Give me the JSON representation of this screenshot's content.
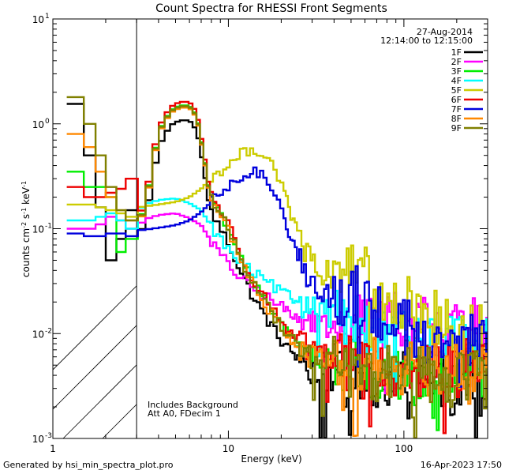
{
  "chart_data": {
    "type": "line",
    "title": "Count Spectra for RHESSI Front Segments",
    "xlabel": "Energy (keV)",
    "ylabel_parts": [
      "counts cm",
      "-2",
      " s",
      "-1",
      " keV",
      "-1"
    ],
    "xscale": "log",
    "yscale": "log",
    "xlim": [
      1,
      300
    ],
    "ylim": [
      0.001,
      10
    ],
    "x_ticks": [
      {
        "value": 1,
        "label": "1"
      },
      {
        "value": 10,
        "label": "10"
      },
      {
        "value": 100,
        "label": "100"
      }
    ],
    "y_ticks": [
      {
        "value": 0.001,
        "base": "10",
        "exp": "-3"
      },
      {
        "value": 0.01,
        "base": "10",
        "exp": "-2"
      },
      {
        "value": 0.1,
        "base": "10",
        "exp": "-1"
      },
      {
        "value": 1,
        "base": "10",
        "exp": "0"
      },
      {
        "value": 10,
        "base": "10",
        "exp": "1"
      }
    ],
    "shaded_region": {
      "from": 1,
      "to": 3,
      "style": "hatched"
    },
    "info": {
      "date": "27-Aug-2014",
      "time_range": "12:14:00 to 12:15:00"
    },
    "notes": [
      "Includes Background",
      "Att A0, FDecim 1"
    ],
    "series": [
      {
        "name": "1F",
        "color": "#000000",
        "shape": "A",
        "scale": 0.72,
        "low": [
          3.0,
          1.55,
          0.5,
          0.16,
          0.05,
          0.08,
          0.15
        ],
        "tail": 0.0032
      },
      {
        "name": "2F",
        "color": "#ff00ff",
        "shape": "S",
        "scale": 0.18,
        "low": [
          3.0,
          0.1,
          0.1,
          0.11,
          0.13,
          0.12,
          0.1
        ],
        "tail": 0.012
      },
      {
        "name": "3F",
        "color": "#00ee00",
        "shape": "A",
        "scale": 1.0,
        "low": [
          3.0,
          0.35,
          0.25,
          0.25,
          0.2,
          0.06,
          0.08
        ],
        "tail": 0.0042
      },
      {
        "name": "4F",
        "color": "#00ffff",
        "shape": "S",
        "scale": 0.25,
        "low": [
          3.0,
          0.12,
          0.12,
          0.13,
          0.14,
          0.12,
          0.1
        ],
        "tail": 0.009
      },
      {
        "name": "5F",
        "color": "#cccc00",
        "shape": "M",
        "scale": 1.0,
        "low": [
          3.0,
          0.17,
          0.17,
          0.16,
          0.15,
          0.14,
          0.13
        ],
        "tail": 0.011
      },
      {
        "name": "6F",
        "color": "#ee0000",
        "shape": "A",
        "scale": 1.08,
        "low": [
          3.0,
          0.25,
          0.2,
          0.2,
          0.22,
          0.24,
          0.3
        ],
        "tail": 0.0046
      },
      {
        "name": "7F",
        "color": "#0000dd",
        "shape": "M",
        "scale": 0.6,
        "low": [
          3.0,
          0.09,
          0.085,
          0.085,
          0.09,
          0.09,
          0.085
        ],
        "tail": 0.008
      },
      {
        "name": "8F",
        "color": "#ff8800",
        "shape": "A",
        "scale": 0.95,
        "low": [
          3.0,
          0.8,
          0.6,
          0.35,
          0.2,
          0.15,
          0.12
        ],
        "tail": 0.0045
      },
      {
        "name": "9F",
        "color": "#808000",
        "shape": "A",
        "scale": 0.98,
        "low": [
          3.0,
          1.8,
          1.0,
          0.5,
          0.25,
          0.15,
          0.12
        ],
        "tail": 0.0035
      }
    ],
    "shapes": {
      "A": [
        [
          3.05,
          0.11
        ],
        [
          3.4,
          0.18
        ],
        [
          3.8,
          0.55
        ],
        [
          4.2,
          1.0
        ],
        [
          4.7,
          1.35
        ],
        [
          5.3,
          1.5
        ],
        [
          6.0,
          1.5
        ],
        [
          6.6,
          1.2
        ],
        [
          7.2,
          0.55
        ],
        [
          7.8,
          0.22
        ],
        [
          8.6,
          0.16
        ],
        [
          9.5,
          0.12
        ],
        [
          10.5,
          0.085
        ],
        [
          12,
          0.05
        ],
        [
          14,
          0.03
        ],
        [
          17,
          0.018
        ],
        [
          20,
          0.012
        ],
        [
          25,
          0.008
        ],
        [
          30,
          0.006
        ],
        [
          40,
          0.005
        ],
        [
          60,
          0.0045
        ],
        [
          100,
          0.004
        ],
        [
          200,
          0.0038
        ],
        [
          300,
          0.0035
        ]
      ],
      "S": [
        [
          3.05,
          0.6
        ],
        [
          3.5,
          0.7
        ],
        [
          4,
          0.75
        ],
        [
          5,
          0.78
        ],
        [
          6,
          0.7
        ],
        [
          7,
          0.6
        ],
        [
          8,
          0.42
        ],
        [
          9,
          0.32
        ],
        [
          10,
          0.25
        ],
        [
          12,
          0.18
        ],
        [
          14,
          0.15
        ],
        [
          17,
          0.12
        ],
        [
          20,
          0.1
        ],
        [
          25,
          0.08
        ],
        [
          30,
          0.07
        ],
        [
          40,
          0.06
        ],
        [
          50,
          0.05
        ],
        [
          60,
          0.045
        ],
        [
          80,
          0.035
        ],
        [
          100,
          0.03
        ],
        [
          150,
          0.024
        ],
        [
          200,
          0.02
        ],
        [
          300,
          0.016
        ]
      ],
      "M": [
        [
          3.05,
          0.16
        ],
        [
          4,
          0.17
        ],
        [
          5,
          0.18
        ],
        [
          6,
          0.2
        ],
        [
          7,
          0.24
        ],
        [
          8,
          0.3
        ],
        [
          9,
          0.36
        ],
        [
          10,
          0.4
        ],
        [
          11,
          0.46
        ],
        [
          12,
          0.52
        ],
        [
          13,
          0.56
        ],
        [
          14,
          0.57
        ],
        [
          15,
          0.55
        ],
        [
          16,
          0.52
        ],
        [
          17,
          0.47
        ],
        [
          18,
          0.4
        ],
        [
          20,
          0.28
        ],
        [
          22,
          0.16
        ],
        [
          25,
          0.09
        ],
        [
          28,
          0.055
        ],
        [
          32,
          0.04
        ],
        [
          40,
          0.036
        ],
        [
          50,
          0.04
        ],
        [
          60,
          0.036
        ],
        [
          70,
          0.028
        ],
        [
          80,
          0.023
        ],
        [
          100,
          0.019
        ],
        [
          130,
          0.016
        ],
        [
          160,
          0.013
        ],
        [
          200,
          0.011
        ],
        [
          250,
          0.009
        ],
        [
          300,
          0.008
        ]
      ]
    }
  },
  "footer": {
    "left": "Generated by hsi_min_spectra_plot.pro",
    "right": "16-Apr-2023 17:50"
  }
}
